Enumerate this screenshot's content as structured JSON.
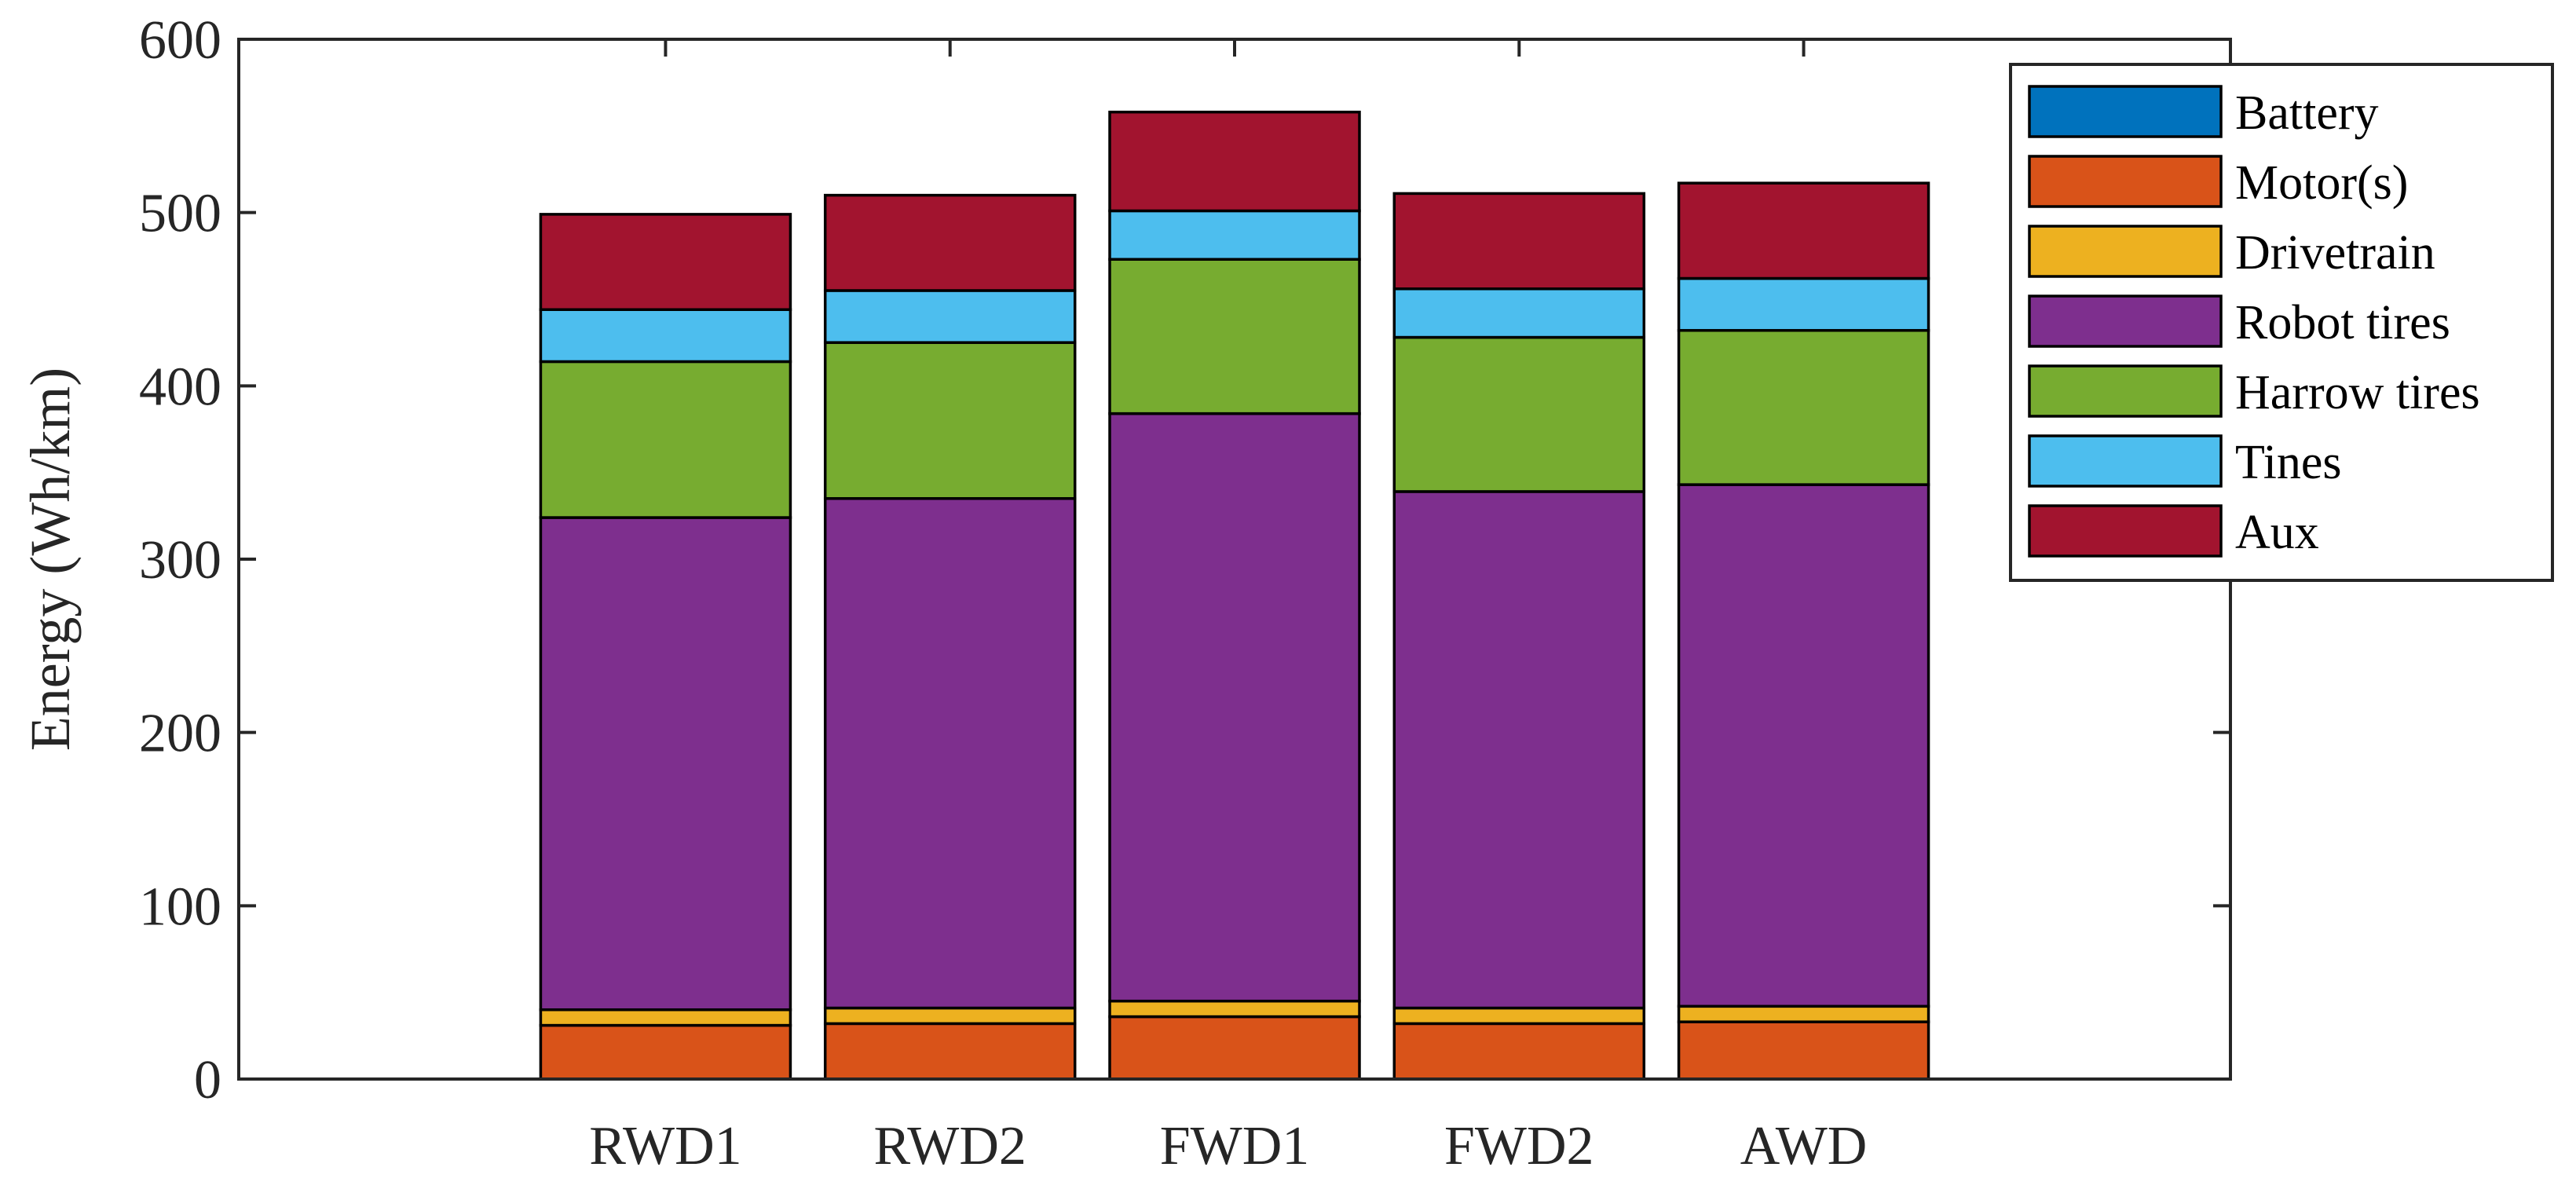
{
  "chart_data": {
    "type": "bar",
    "stacked": true,
    "title": "",
    "xlabel": "",
    "ylabel": "Energy (Wh/km)",
    "ylim": [
      0,
      600
    ],
    "yticks": [
      0,
      100,
      200,
      300,
      400,
      500,
      600
    ],
    "categories": [
      "RWD1",
      "RWD2",
      "FWD1",
      "FWD2",
      "AWD"
    ],
    "legend_position": "top-right",
    "series": [
      {
        "name": "Battery",
        "color": "#0072BD",
        "values": [
          0,
          0,
          0,
          0,
          0
        ]
      },
      {
        "name": "Motor(s)",
        "color": "#D95319",
        "values": [
          31,
          32,
          36,
          32,
          33
        ]
      },
      {
        "name": "Drivetrain",
        "color": "#EDB120",
        "values": [
          9,
          9,
          9,
          9,
          9
        ]
      },
      {
        "name": "Robot tires",
        "color": "#7E2F8E",
        "values": [
          284,
          294,
          339,
          298,
          301
        ]
      },
      {
        "name": "Harrow tires",
        "color": "#77AC30",
        "values": [
          90,
          90,
          89,
          89,
          89
        ]
      },
      {
        "name": "Tines",
        "color": "#4DBEEE",
        "values": [
          30,
          30,
          28,
          28,
          30
        ]
      },
      {
        "name": "Aux",
        "color": "#A2142F",
        "values": [
          55,
          55,
          57,
          55,
          55
        ]
      }
    ]
  }
}
